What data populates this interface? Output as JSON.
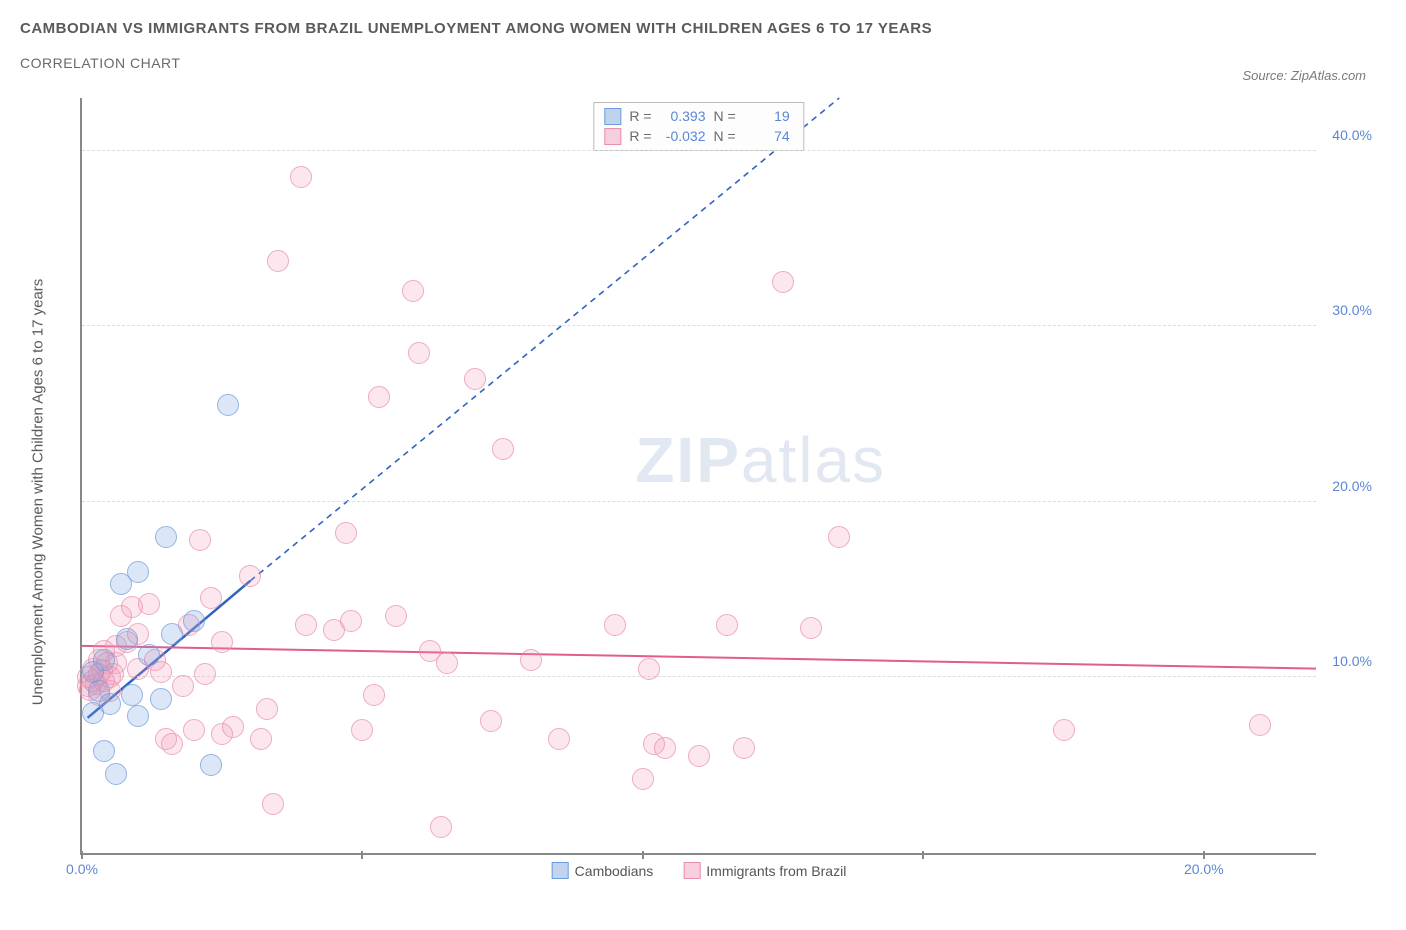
{
  "title": "CAMBODIAN VS IMMIGRANTS FROM BRAZIL UNEMPLOYMENT AMONG WOMEN WITH CHILDREN AGES 6 TO 17 YEARS",
  "subtitle": "CORRELATION CHART",
  "source_label": "Source: ZipAtlas.com",
  "y_axis_label": "Unemployment Among Women with Children Ages 6 to 17 years",
  "watermark_bold": "ZIP",
  "watermark_rest": "atlas",
  "axes": {
    "x_min": 0,
    "x_max": 22,
    "y_min": 0,
    "y_max": 43,
    "x_ticks": [
      0,
      20
    ],
    "x_tick_labels": [
      "0.0%",
      "20.0%"
    ],
    "y_ticks": [
      10,
      20,
      30,
      40
    ],
    "y_tick_labels": [
      "10.0%",
      "20.0%",
      "30.0%",
      "40.0%"
    ],
    "x_major_marks": [
      0,
      5,
      10,
      15,
      20
    ],
    "grid_color": "#dddddd",
    "axis_color": "#888888",
    "tick_label_color": "#5b86d6",
    "tick_fontsize": 14
  },
  "stats_box": {
    "rows": [
      {
        "swatch": "blue",
        "R_label": "R =",
        "R": "0.393",
        "N_label": "N =",
        "N": "19"
      },
      {
        "swatch": "pink",
        "R_label": "R =",
        "R": "-0.032",
        "N_label": "N =",
        "N": "74"
      }
    ]
  },
  "legend": {
    "series1": {
      "swatch": "blue",
      "label": "Cambodians"
    },
    "series2": {
      "swatch": "pink",
      "label": "Immigrants from Brazil"
    }
  },
  "trend_lines": {
    "blue": {
      "x1": 0.1,
      "y1": 7.7,
      "x2": 3.0,
      "y2": 15.5,
      "x3": 13.5,
      "y3": 43,
      "color": "#2f63c2",
      "solid_width": 2.5,
      "dash": "6,5"
    },
    "pink": {
      "x1": 0,
      "y1": 11.8,
      "x2": 22,
      "y2": 10.5,
      "color": "#e05d8c",
      "width": 2
    }
  },
  "series": {
    "cambodians": {
      "color_fill": "rgba(120,160,220,0.35)",
      "color_stroke": "#6f9cdc",
      "marker_size": 20,
      "points": [
        [
          0.2,
          8.0
        ],
        [
          0.3,
          9.2
        ],
        [
          0.4,
          11.0
        ],
        [
          0.5,
          8.5
        ],
        [
          0.7,
          15.3
        ],
        [
          0.8,
          12.2
        ],
        [
          0.9,
          9.0
        ],
        [
          1.0,
          7.8
        ],
        [
          1.0,
          16.0
        ],
        [
          1.2,
          11.3
        ],
        [
          1.4,
          8.8
        ],
        [
          1.5,
          18.0
        ],
        [
          1.6,
          12.5
        ],
        [
          2.0,
          13.2
        ],
        [
          0.4,
          5.8
        ],
        [
          0.6,
          4.5
        ],
        [
          2.3,
          5.0
        ],
        [
          2.6,
          25.5
        ],
        [
          0.2,
          10.3
        ]
      ]
    },
    "brazil": {
      "color_fill": "rgba(240,150,180,0.30)",
      "color_stroke": "#e88fb0",
      "marker_size": 20,
      "points": [
        [
          0.1,
          9.5
        ],
        [
          0.1,
          10.0
        ],
        [
          0.2,
          9.8
        ],
        [
          0.2,
          10.5
        ],
        [
          0.3,
          11.0
        ],
        [
          0.3,
          9.0
        ],
        [
          0.3,
          10.2
        ],
        [
          0.4,
          11.5
        ],
        [
          0.5,
          10.0
        ],
        [
          0.5,
          9.2
        ],
        [
          0.6,
          10.8
        ],
        [
          0.6,
          11.8
        ],
        [
          0.7,
          13.5
        ],
        [
          0.8,
          12.0
        ],
        [
          0.9,
          14.0
        ],
        [
          1.0,
          12.5
        ],
        [
          1.0,
          10.5
        ],
        [
          1.2,
          14.2
        ],
        [
          1.3,
          11.0
        ],
        [
          1.4,
          10.3
        ],
        [
          1.5,
          6.5
        ],
        [
          1.6,
          6.2
        ],
        [
          1.8,
          9.5
        ],
        [
          1.9,
          13.0
        ],
        [
          2.0,
          7.0
        ],
        [
          2.1,
          17.8
        ],
        [
          2.2,
          10.2
        ],
        [
          2.3,
          14.5
        ],
        [
          2.5,
          12.0
        ],
        [
          2.5,
          6.8
        ],
        [
          2.7,
          7.2
        ],
        [
          3.0,
          15.8
        ],
        [
          3.2,
          6.5
        ],
        [
          3.3,
          8.2
        ],
        [
          3.4,
          2.8
        ],
        [
          3.5,
          33.7
        ],
        [
          3.9,
          38.5
        ],
        [
          4.0,
          13.0
        ],
        [
          4.5,
          12.7
        ],
        [
          4.7,
          18.2
        ],
        [
          4.8,
          13.2
        ],
        [
          5.0,
          7.0
        ],
        [
          5.2,
          9.0
        ],
        [
          5.3,
          26.0
        ],
        [
          5.6,
          13.5
        ],
        [
          5.9,
          32.0
        ],
        [
          6.0,
          28.5
        ],
        [
          6.2,
          11.5
        ],
        [
          6.4,
          1.5
        ],
        [
          6.5,
          10.8
        ],
        [
          7.0,
          27.0
        ],
        [
          7.3,
          7.5
        ],
        [
          7.5,
          23.0
        ],
        [
          8.0,
          11.0
        ],
        [
          8.5,
          6.5
        ],
        [
          9.5,
          13.0
        ],
        [
          10.0,
          4.2
        ],
        [
          10.1,
          10.5
        ],
        [
          10.2,
          6.2
        ],
        [
          10.4,
          6.0
        ],
        [
          11.0,
          5.5
        ],
        [
          11.5,
          13.0
        ],
        [
          11.8,
          6.0
        ],
        [
          12.5,
          32.5
        ],
        [
          13.0,
          12.8
        ],
        [
          13.5,
          18.0
        ],
        [
          17.5,
          7.0
        ],
        [
          21.0,
          7.3
        ],
        [
          0.15,
          9.3
        ],
        [
          0.25,
          9.6
        ],
        [
          0.35,
          10.4
        ],
        [
          0.4,
          9.8
        ],
        [
          0.45,
          10.8
        ],
        [
          0.55,
          10.2
        ]
      ]
    }
  },
  "style": {
    "background": "#ffffff",
    "title_color": "#5a5a5a",
    "title_fontsize": 15,
    "label_fontsize": 15,
    "point_opacity": 0.75
  }
}
